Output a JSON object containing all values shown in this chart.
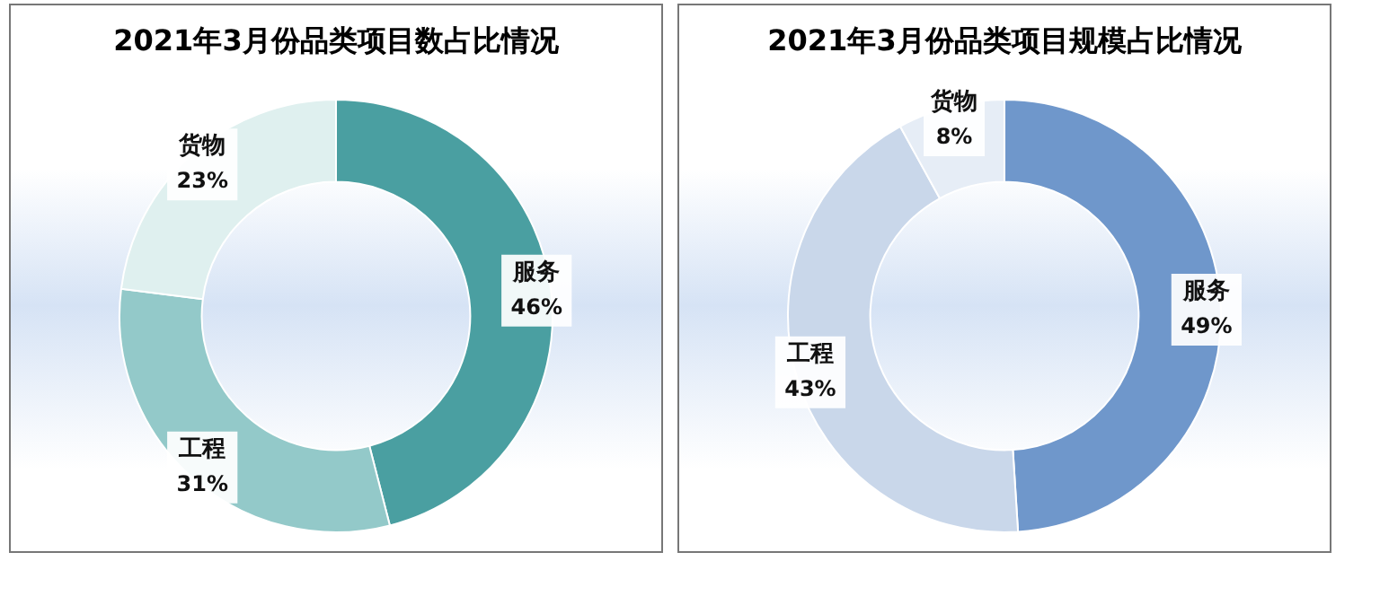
{
  "chart_data": [
    {
      "type": "donut",
      "title": "2021年3月份品类项目数占比情况",
      "categories": [
        "服务",
        "工程",
        "货物"
      ],
      "values": [
        46,
        31,
        23
      ],
      "colors": [
        "#4a9fa1",
        "#93c9c9",
        "#dff0ef"
      ],
      "value_labels": [
        "46%",
        "31%",
        "23%"
      ],
      "legend": false
    },
    {
      "type": "donut",
      "title": "2021年3月份品类项目规模占比情况",
      "categories": [
        "服务",
        "工程",
        "货物"
      ],
      "values": [
        49,
        43,
        8
      ],
      "colors": [
        "#6f97cb",
        "#c9d7ea",
        "#e6edf6"
      ],
      "value_labels": [
        "49%",
        "43%",
        "8%"
      ],
      "legend": false
    }
  ]
}
